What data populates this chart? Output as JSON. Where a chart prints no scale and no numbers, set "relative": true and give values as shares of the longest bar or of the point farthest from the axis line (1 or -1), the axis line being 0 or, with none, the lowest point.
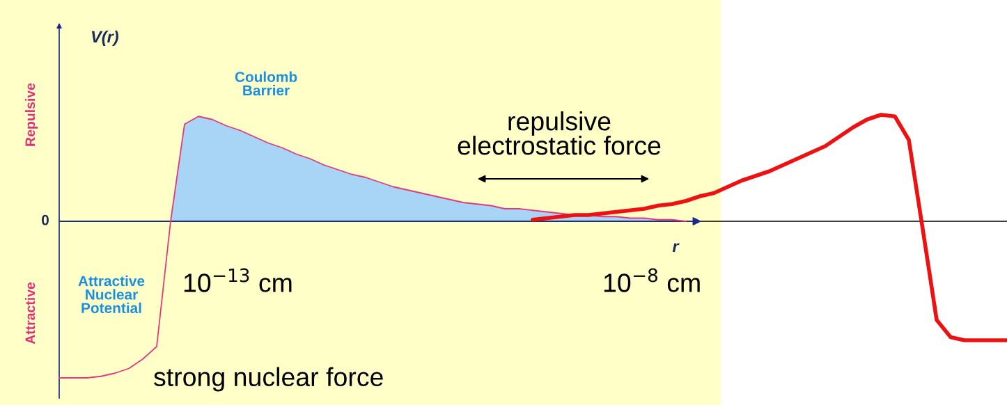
{
  "chart_data": {
    "type": "line",
    "relative": true,
    "xlabel": "r",
    "ylabel": "V(r)",
    "categories": [
      null,
      null,
      null,
      null,
      null,
      null,
      null,
      null,
      null,
      null,
      null,
      null,
      null,
      null,
      null,
      null,
      null,
      null,
      null,
      null,
      null,
      null,
      null,
      null,
      null,
      null,
      null,
      null,
      null,
      null,
      null,
      null,
      null,
      null,
      null,
      null,
      null,
      null,
      null,
      null,
      null,
      null,
      null,
      null,
      null,
      null,
      null,
      null,
      null,
      null,
      null,
      null,
      null,
      null,
      null,
      null,
      null,
      null,
      null,
      null,
      null,
      null,
      null,
      null,
      null,
      null,
      null,
      null,
      null
    ],
    "series": [
      {
        "type": "area",
        "color": "#a8d4f5",
        "values": [
          null,
          null,
          null,
          null,
          null,
          null,
          null,
          null,
          0,
          0.62,
          0.67,
          0.65,
          0.61,
          0.58,
          0.54,
          0.5,
          0.47,
          0.43,
          0.4,
          0.36,
          0.33,
          0.3,
          0.28,
          0.25,
          0.22,
          0.2,
          0.18,
          0.16,
          0.14,
          0.12,
          0.11,
          0.1,
          0.08,
          0.08,
          0.07,
          0.06,
          0.05,
          0.04,
          0.04,
          0.03,
          0.03,
          0.02,
          0.02,
          0.01,
          0.01,
          0.0,
          null,
          null,
          null,
          null,
          null,
          null,
          null,
          null,
          null,
          null,
          null,
          null,
          null,
          null,
          null,
          null,
          null,
          null,
          null,
          null,
          null,
          null,
          null
        ]
      },
      {
        "color": "#e8377f",
        "values": [
          -1.0,
          -1.0,
          -1.0,
          -0.99,
          -0.97,
          -0.94,
          -0.88,
          -0.8,
          0,
          0.62,
          0.67,
          0.65,
          0.61,
          0.58,
          0.54,
          0.5,
          0.47,
          0.43,
          0.4,
          0.36,
          0.33,
          0.3,
          0.28,
          0.25,
          0.22,
          0.2,
          0.18,
          0.16,
          0.14,
          0.12,
          0.11,
          0.1,
          0.08,
          0.08,
          0.07,
          0.06,
          0.05,
          0.04,
          0.04,
          0.03,
          0.03,
          0.02,
          0.02,
          0.01,
          0.01,
          0.0,
          null,
          null,
          null,
          null,
          null,
          null,
          null,
          null,
          null,
          null,
          null,
          null,
          null,
          null,
          null,
          null,
          null,
          null,
          null,
          null,
          null,
          null,
          null
        ]
      },
      {
        "color": "#ee1111",
        "values": [
          null,
          null,
          null,
          null,
          null,
          null,
          null,
          null,
          null,
          null,
          null,
          null,
          null,
          null,
          null,
          null,
          null,
          null,
          null,
          null,
          null,
          null,
          null,
          null,
          null,
          null,
          null,
          null,
          null,
          null,
          null,
          null,
          null,
          null,
          0.01,
          0.02,
          0.03,
          0.04,
          0.04,
          0.05,
          0.06,
          0.07,
          0.08,
          0.1,
          0.11,
          0.13,
          0.16,
          0.18,
          0.22,
          0.26,
          0.29,
          0.32,
          0.36,
          0.4,
          0.44,
          0.48,
          0.54,
          0.6,
          0.65,
          0.68,
          0.67,
          0.52,
          -0.05,
          -0.63,
          -0.74,
          -0.76,
          -0.76,
          -0.76,
          -0.76
        ]
      }
    ],
    "annotations": [
      "Repulsive",
      "Attractive",
      "0",
      "Coulomb\nBarrier",
      "Attractive\nNuclear\nPotential",
      "10$^{−13}$ cm",
      "10$^{−8}$ cm",
      "repulsive\nelectrostatic force",
      "strong nuclear force"
    ]
  }
}
